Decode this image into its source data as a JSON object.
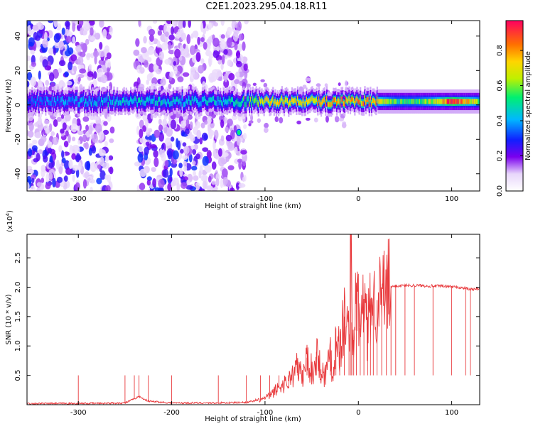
{
  "title": "C2E1.2023.295.04.18.R11",
  "chart_data": [
    {
      "type": "heatmap",
      "xlabel": "Height of straight line (km)",
      "ylabel": "Frequency (Hz)",
      "xlim": [
        -355,
        130
      ],
      "ylim": [
        -50,
        49
      ],
      "xticks": [
        -300,
        -200,
        -100,
        0,
        100
      ],
      "xtick_labels": [
        "-300",
        "-200",
        "-100",
        "0",
        "100"
      ],
      "yticks": [
        -40,
        -20,
        0,
        20,
        40
      ],
      "ytick_labels": [
        "-40",
        "-20",
        "0",
        "20",
        "40"
      ],
      "colorbar": {
        "label": "Normalized spectral amplitude",
        "range": [
          0.0,
          0.97
        ],
        "ticks": [
          0.0,
          0.2,
          0.4,
          0.6,
          0.8
        ],
        "tick_labels": [
          "0.0",
          "0.2",
          "0.4",
          "0.6",
          "0.8"
        ]
      },
      "features": {
        "carrier_line_frequency_hz": 2,
        "noisy_region_km": [
          -355,
          -120
        ],
        "gap_region_km": [
          -255,
          -240
        ],
        "bright_spot": {
          "x_km": -128,
          "freq_hz": -16
        }
      },
      "band_profile": {
        "x": [
          -350,
          -300,
          -250,
          -200,
          -150,
          -120,
          -100,
          -80,
          -60,
          -40,
          -20,
          0,
          20,
          40,
          60,
          80,
          100,
          130
        ],
        "amplitude": [
          0.35,
          0.4,
          0.45,
          0.45,
          0.45,
          0.55,
          0.7,
          0.75,
          0.7,
          0.75,
          0.85,
          0.8,
          0.75,
          0.55,
          0.55,
          0.65,
          0.95,
          0.6
        ]
      }
    },
    {
      "type": "line",
      "xlabel": "Height of straight line (km)",
      "ylabel": "SNR (10 * v/v)",
      "scale_label": "(x10",
      "scale_exp": "4",
      "scale_close": ")",
      "xlim": [
        -355,
        130
      ],
      "ylim": [
        0,
        2.9
      ],
      "xticks": [
        -300,
        -200,
        -100,
        0,
        100
      ],
      "xtick_labels": [
        "-300",
        "-200",
        "-100",
        "0",
        "100"
      ],
      "yticks": [
        0.5,
        1.0,
        1.5,
        2.0,
        2.5
      ],
      "ytick_labels": [
        "0.5",
        "1.0",
        "1.5",
        "2.0",
        "2.5"
      ],
      "series": [
        {
          "color": "#e8383b",
          "x": [
            -355,
            -300,
            -250,
            -240,
            -235,
            -225,
            -200,
            -150,
            -120,
            -105,
            -95,
            -85,
            -75,
            -65,
            -60,
            -55,
            -48,
            -45,
            -40,
            -35,
            -30,
            -27,
            -24,
            -20,
            -15,
            -10,
            -8,
            -7,
            -5,
            -2,
            2,
            6,
            10,
            13,
            16,
            20,
            25,
            30,
            35,
            40,
            50,
            60,
            80,
            100,
            115,
            120,
            130
          ],
          "y": [
            0.02,
            0.02,
            0.03,
            0.1,
            0.14,
            0.06,
            0.03,
            0.03,
            0.04,
            0.08,
            0.15,
            0.3,
            0.4,
            0.65,
            0.45,
            0.8,
            0.5,
            0.9,
            0.6,
            0.5,
            0.95,
            0.4,
            1.3,
            0.9,
            1.5,
            1.2,
            2.9,
            1.4,
            1.1,
            1.9,
            1.3,
            1.8,
            1.2,
            1.7,
            1.75,
            1.78,
            1.8,
            1.95,
            2.0,
            2.02,
            2.03,
            2.03,
            2.02,
            2.01,
            1.98,
            1.96,
            1.97
          ]
        }
      ]
    }
  ]
}
